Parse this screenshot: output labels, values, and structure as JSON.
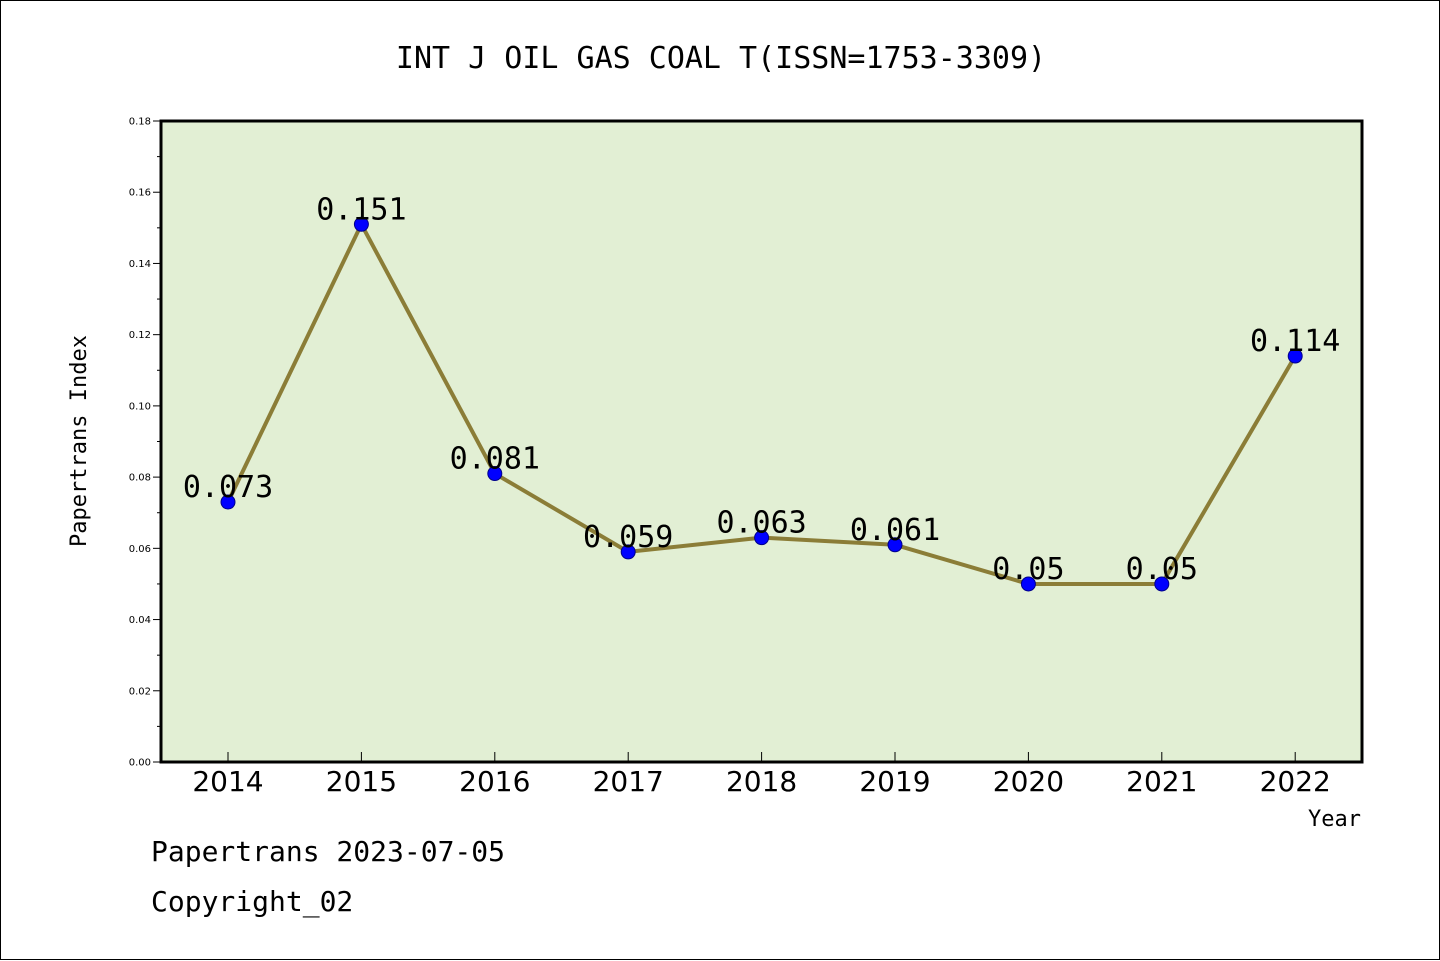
{
  "chart_data": {
    "type": "line",
    "title": "INT J OIL GAS COAL T(ISSN=1753-3309)",
    "xlabel": "Year",
    "ylabel": "Papertrans Index",
    "categories": [
      "2014",
      "2015",
      "2016",
      "2017",
      "2018",
      "2019",
      "2020",
      "2021",
      "2022"
    ],
    "series": [
      {
        "values": [
          0.073,
          0.151,
          0.081,
          0.059,
          0.063,
          0.061,
          0.05,
          0.05,
          0.114
        ],
        "data_labels": [
          "0.073",
          "0.151",
          "0.081",
          "0.059",
          "0.063",
          "0.061",
          "0.05",
          "0.05",
          "0.114"
        ]
      }
    ],
    "ylim": [
      0,
      0.18
    ],
    "yticks": [
      0,
      0.02,
      0.04,
      0.06,
      0.08,
      0.1,
      0.12,
      0.14,
      0.16,
      0.18
    ],
    "ytick_labels": [
      "0.00",
      "0.02",
      "0.04",
      "0.06",
      "0.08",
      "0.10",
      "0.12",
      "0.14",
      "0.16",
      "0.18"
    ],
    "grid": false,
    "legend": "none",
    "colors": {
      "plot_background": "#e2efd4",
      "line": "#8b7d37",
      "marker": "#0000ff",
      "axis": "#000000"
    }
  },
  "footer": {
    "line1": "Papertrans 2023-07-05",
    "line2": "Copyright_02"
  }
}
